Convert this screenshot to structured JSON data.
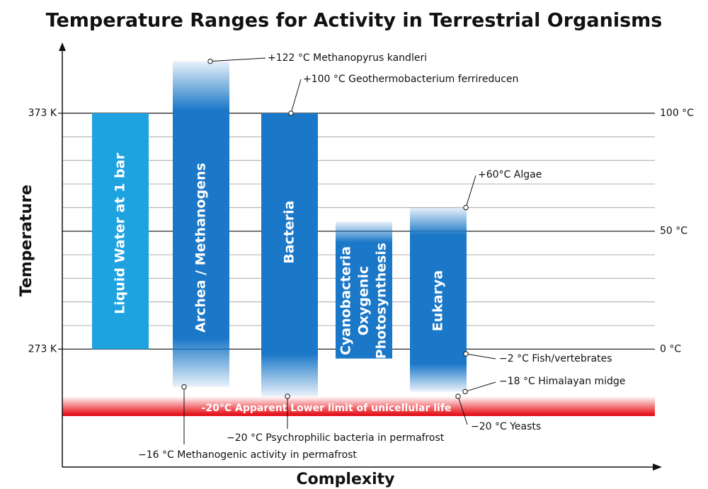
{
  "chart_data": {
    "type": "range-bar",
    "title": "Temperature Ranges for Activity in Terrestrial Organisms",
    "y_label": "Temperature",
    "x_label": "Complexity",
    "categories": [
      "Liquid Water at 1 bar",
      "Archea / Methanogens",
      "Bacteria",
      [
        "Cyanobacteria",
        "Oxygenic",
        "Photosynthesis"
      ],
      "Eukarya"
    ],
    "lows": [
      0,
      -16,
      -20,
      -4,
      -18
    ],
    "highs": [
      100,
      122,
      100,
      54,
      60
    ],
    "colors": [
      "#1fa3e0",
      "#1b78c8",
      "#1b78c8",
      "#1b78c8",
      "#1b78c8"
    ],
    "ylim": [
      -50,
      130
    ],
    "yticks": [
      {
        "value": 0,
        "label": "0 °C"
      },
      {
        "value": 50,
        "label": "50 °C"
      },
      {
        "value": 100,
        "label": "100 °C"
      }
    ],
    "kelvin_ticks": [
      {
        "value": 0,
        "label": "273 K"
      },
      {
        "value": 100,
        "label": "373 K"
      }
    ],
    "minor_yticks": [
      10,
      20,
      30,
      40,
      60,
      70,
      80,
      90
    ],
    "limit_line": {
      "value": -20,
      "label": "-20°C  Apparent Lower limit of unicellular life",
      "color": "#e8141b"
    },
    "annotations": [
      {
        "text": "+122 °C Methanopyrus kandleri",
        "value": 122
      },
      {
        "text": "+100 °C Geothermobacterium ferrireducen",
        "value": 100
      },
      {
        "text": "+60°C Algae",
        "value": 60
      },
      {
        "text": "−2 °C Fish/vertebrates",
        "value": -2
      },
      {
        "text": "−18 °C Himalayan midge",
        "value": -18
      },
      {
        "text": "−20 °C Yeasts",
        "value": -20
      },
      {
        "text": "−20 °C Psychrophilic bacteria in permafrost",
        "value": -20
      },
      {
        "text": "−16 °C Methanogenic activity in permafrost",
        "value": -16
      }
    ]
  }
}
